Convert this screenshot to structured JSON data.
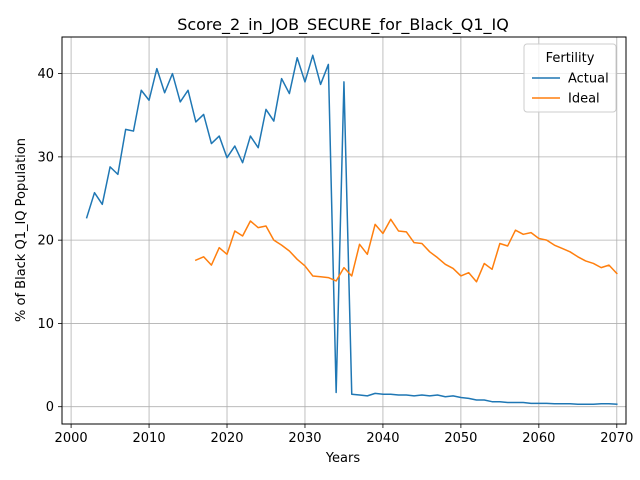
{
  "chart_data": {
    "type": "line",
    "title": "Score_2_in_JOB_SECURE_for_Black_Q1_IQ",
    "xlabel": "Years",
    "ylabel": "% of Black Q1_IQ Population",
    "xlim": [
      2000,
      2070
    ],
    "ylim": [
      0,
      40
    ],
    "xticks": [
      2000,
      2010,
      2020,
      2030,
      2040,
      2050,
      2060,
      2070
    ],
    "yticks": [
      0,
      10,
      20,
      30,
      40
    ],
    "grid": true,
    "legend": {
      "title": "Fertility",
      "placement": "top-right"
    },
    "series": [
      {
        "name": "Actual",
        "color": "#1f77b4",
        "x": [
          2002,
          2003,
          2004,
          2005,
          2006,
          2007,
          2008,
          2009,
          2010,
          2011,
          2012,
          2013,
          2014,
          2015,
          2016,
          2017,
          2018,
          2019,
          2020,
          2021,
          2022,
          2023,
          2024,
          2025,
          2026,
          2027,
          2028,
          2029,
          2030,
          2031,
          2032,
          2033,
          2034,
          2035,
          2036,
          2037,
          2038,
          2039,
          2040,
          2041,
          2042,
          2043,
          2044,
          2045,
          2046,
          2047,
          2048,
          2049,
          2050,
          2051,
          2052,
          2053,
          2054,
          2055,
          2056,
          2057,
          2058,
          2059,
          2060,
          2061,
          2062,
          2063,
          2064,
          2065,
          2066,
          2067,
          2068,
          2069,
          2070
        ],
        "y": [
          22.7,
          25.7,
          24.3,
          28.8,
          27.9,
          33.3,
          33.1,
          38.0,
          36.8,
          40.6,
          37.7,
          40.0,
          36.6,
          38.0,
          34.2,
          35.1,
          31.6,
          32.5,
          29.9,
          31.3,
          29.3,
          32.5,
          31.1,
          35.7,
          34.3,
          39.4,
          37.6,
          41.9,
          39.0,
          42.2,
          38.7,
          41.1,
          1.7,
          39.0,
          1.5,
          1.4,
          1.3,
          1.6,
          1.5,
          1.5,
          1.4,
          1.4,
          1.3,
          1.4,
          1.3,
          1.4,
          1.2,
          1.3,
          1.1,
          1.0,
          0.8,
          0.8,
          0.6,
          0.6,
          0.5,
          0.5,
          0.5,
          0.4,
          0.4,
          0.4,
          0.35,
          0.35,
          0.35,
          0.3,
          0.3,
          0.3,
          0.35,
          0.35,
          0.3
        ]
      },
      {
        "name": "Ideal",
        "color": "#ff7f0e",
        "x": [
          2016,
          2017,
          2018,
          2019,
          2020,
          2021,
          2022,
          2023,
          2024,
          2025,
          2026,
          2027,
          2028,
          2029,
          2030,
          2031,
          2032,
          2033,
          2034,
          2035,
          2036,
          2037,
          2038,
          2039,
          2040,
          2041,
          2042,
          2043,
          2044,
          2045,
          2046,
          2047,
          2048,
          2049,
          2050,
          2051,
          2052,
          2053,
          2054,
          2055,
          2056,
          2057,
          2058,
          2059,
          2060,
          2061,
          2062,
          2063,
          2064,
          2065,
          2066,
          2067,
          2068,
          2069,
          2070
        ],
        "y": [
          17.6,
          18.0,
          17.0,
          19.1,
          18.3,
          21.1,
          20.5,
          22.3,
          21.5,
          21.7,
          20.0,
          19.4,
          18.7,
          17.7,
          16.9,
          15.7,
          15.6,
          15.5,
          15.1,
          16.7,
          15.7,
          19.5,
          18.3,
          21.9,
          20.8,
          22.5,
          21.1,
          21.0,
          19.7,
          19.6,
          18.6,
          17.9,
          17.1,
          16.6,
          15.7,
          16.1,
          15.0,
          17.2,
          16.5,
          19.6,
          19.3,
          21.2,
          20.7,
          20.9,
          20.2,
          20.0,
          19.4,
          19.0,
          18.6,
          18.0,
          17.5,
          17.2,
          16.7,
          17.0,
          16.0
        ]
      }
    ]
  }
}
